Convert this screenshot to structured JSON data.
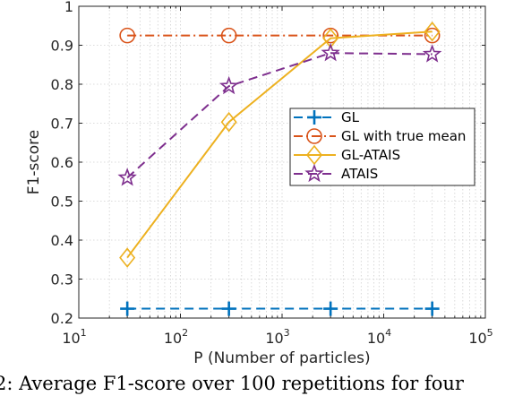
{
  "chart_data": {
    "type": "line",
    "xscale": "log",
    "xlabel": "P (Number of particles)",
    "ylabel": "F1-score",
    "xlim": [
      10,
      100000
    ],
    "ylim": [
      0.2,
      1
    ],
    "xticks": [
      {
        "value": 10,
        "base": "10",
        "exp": "1"
      },
      {
        "value": 100,
        "base": "10",
        "exp": "2"
      },
      {
        "value": 1000,
        "base": "10",
        "exp": "3"
      },
      {
        "value": 10000,
        "base": "10",
        "exp": "4"
      },
      {
        "value": 100000,
        "base": "10",
        "exp": "5"
      }
    ],
    "yticks": [
      {
        "value": 0.2,
        "label": "0.2"
      },
      {
        "value": 0.3,
        "label": "0.3"
      },
      {
        "value": 0.4,
        "label": "0.4"
      },
      {
        "value": 0.5,
        "label": "0.5"
      },
      {
        "value": 0.6,
        "label": "0.6"
      },
      {
        "value": 0.7,
        "label": "0.7"
      },
      {
        "value": 0.8,
        "label": "0.8"
      },
      {
        "value": 0.9,
        "label": "0.9"
      },
      {
        "value": 1.0,
        "label": "1"
      }
    ],
    "grid": true,
    "legend_position": "center-right",
    "x": [
      30,
      300,
      3000,
      30000
    ],
    "series": [
      {
        "name": "GL",
        "values": [
          0.224,
          0.224,
          0.224,
          0.224
        ],
        "color": "#0072BD",
        "marker": "plus",
        "linestyle": "dashed"
      },
      {
        "name": "GL with true mean",
        "values": [
          0.925,
          0.925,
          0.925,
          0.925
        ],
        "color": "#D95319",
        "marker": "circle",
        "linestyle": "dashdot"
      },
      {
        "name": "GL-ATAIS",
        "values": [
          0.355,
          0.703,
          0.918,
          0.935
        ],
        "color": "#EDB120",
        "marker": "diamond",
        "linestyle": "solid"
      },
      {
        "name": "ATAIS",
        "values": [
          0.56,
          0.795,
          0.88,
          0.877
        ],
        "color": "#7E2F8E",
        "marker": "star",
        "linestyle": "dashed"
      }
    ]
  },
  "caption": "2: Average F1-score over 100 repetitions for four"
}
